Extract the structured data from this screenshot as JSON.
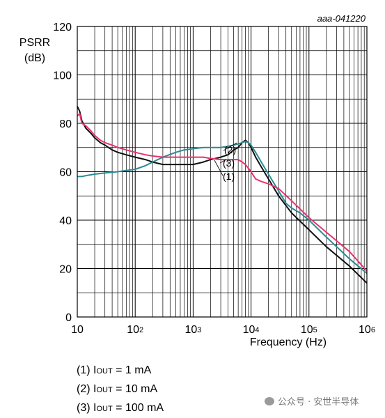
{
  "figure_id": "aaa-041220",
  "legend": [
    {
      "id": "(1)",
      "prefix": "I",
      "sub": "OUT",
      "rest": " = 1 mA"
    },
    {
      "id": "(2)",
      "prefix": "I",
      "sub": "OUT",
      "rest": " = 10 mA"
    },
    {
      "id": "(3)",
      "prefix": "I",
      "sub": "OUT",
      "rest": " = 100 mA"
    }
  ],
  "watermark": "公众号 · 安世半导体",
  "chart_data": {
    "type": "line",
    "ylabel_lines": [
      "PSRR",
      "(dB)"
    ],
    "xlabel": "Frequency (Hz)",
    "xscale": "log",
    "xlim": [
      10,
      1000000
    ],
    "ylim": [
      0,
      120
    ],
    "grid": true,
    "x_tick_labels": [
      {
        "base": "10",
        "exp": ""
      },
      {
        "base": "10",
        "exp": "2"
      },
      {
        "base": "10",
        "exp": "3"
      },
      {
        "base": "10",
        "exp": "4"
      },
      {
        "base": "10",
        "exp": "5"
      },
      {
        "base": "10",
        "exp": "6"
      }
    ],
    "y_ticks": [
      0,
      20,
      40,
      60,
      80,
      100,
      120
    ],
    "y_tick_labels": [
      "0",
      "20",
      "40",
      "60",
      "80",
      "100",
      "120"
    ],
    "annotations": [
      "(2)",
      "(3)",
      "(1)"
    ],
    "series": [
      {
        "id": "(1)",
        "color": "#111111",
        "x": [
          10,
          11,
          12,
          14,
          17,
          20,
          25,
          30,
          40,
          50,
          70,
          100,
          150,
          200,
          300,
          500,
          700,
          1000,
          1500,
          2000,
          3000,
          4000,
          5000,
          6000,
          7000,
          8000,
          9000,
          10000,
          12000,
          15000,
          20000,
          30000,
          50000,
          100000,
          200000,
          500000,
          1000000
        ],
        "y": [
          87,
          85,
          81,
          78,
          76,
          74,
          72,
          71,
          69,
          68,
          67,
          66,
          65,
          64,
          63,
          63,
          63,
          63,
          64,
          65,
          66,
          67,
          69,
          70,
          72,
          73,
          72,
          70,
          66,
          62,
          57,
          50,
          43,
          36,
          29,
          21,
          14
        ]
      },
      {
        "id": "(2)",
        "color": "#2a8a93",
        "x": [
          10,
          12,
          15,
          20,
          30,
          50,
          70,
          100,
          150,
          200,
          300,
          500,
          700,
          1000,
          1500,
          2000,
          3000,
          4000,
          5000,
          6000,
          7000,
          8000,
          9000,
          10000,
          12000,
          15000,
          20000,
          30000,
          40000,
          50000,
          70000,
          100000,
          200000,
          500000,
          1000000
        ],
        "y": [
          58,
          58,
          58.5,
          59,
          59.5,
          60,
          60.5,
          61,
          62.5,
          64,
          66,
          68,
          69,
          69.5,
          70,
          70,
          70,
          70.5,
          71,
          71.5,
          72,
          72.5,
          72,
          71,
          68,
          64,
          59,
          52,
          47,
          45,
          43,
          40,
          33,
          24,
          18
        ]
      },
      {
        "id": "(3)",
        "color": "#e8336e",
        "x": [
          10,
          11,
          12,
          14,
          17,
          20,
          25,
          30,
          40,
          50,
          70,
          100,
          150,
          200,
          300,
          500,
          700,
          1000,
          1500,
          2000,
          3000,
          4000,
          5000,
          6000,
          7000,
          8000,
          10000,
          12000,
          15000,
          20000,
          30000,
          50000,
          100000,
          200000,
          500000,
          1000000
        ],
        "y": [
          83,
          84,
          80,
          79,
          77,
          75,
          73,
          72,
          71,
          70,
          69,
          68,
          67,
          66.5,
          66,
          66,
          66,
          66,
          66,
          65.5,
          65,
          65,
          65,
          65,
          64,
          63,
          60,
          57,
          56,
          55,
          53,
          48,
          41,
          35,
          27,
          19
        ]
      }
    ]
  }
}
